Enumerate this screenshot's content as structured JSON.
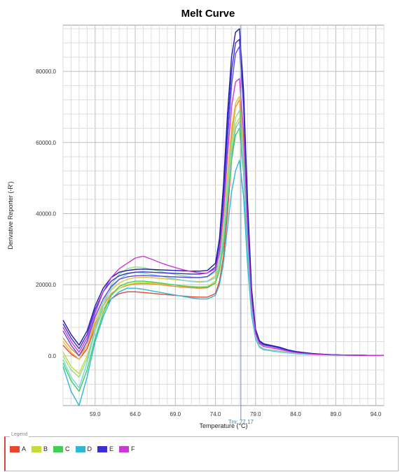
{
  "chart_data": {
    "type": "line",
    "title": "Melt Curve",
    "xlabel": "Temperature (°C)",
    "ylabel": "Derivative Reporter (-R')",
    "xlim": [
      55.0,
      95.0
    ],
    "ylim": [
      -14000,
      93000
    ],
    "x_ticks": [
      59.0,
      64.0,
      69.0,
      74.0,
      79.0,
      84.0,
      89.0,
      94.0
    ],
    "x_tick_labels": [
      "59.0",
      "64.0",
      "69.0",
      "74.0",
      "79.0",
      "84.0",
      "89.0",
      "94.0"
    ],
    "y_ticks": [
      0,
      20000,
      40000,
      60000,
      80000
    ],
    "y_tick_labels": [
      "0.0",
      "20000.0",
      "40000.0",
      "60000.0",
      "80000.0"
    ],
    "grid": true,
    "legend_position": "bottom",
    "tm_marker": {
      "x": 77.17,
      "label": "Tm: 77.17"
    },
    "x": [
      55.0,
      56.0,
      57.0,
      58.0,
      59.0,
      60.0,
      61.0,
      62.0,
      63.0,
      64.0,
      65.0,
      66.0,
      67.0,
      68.0,
      69.0,
      70.0,
      71.0,
      72.0,
      73.0,
      74.0,
      74.5,
      75.0,
      75.5,
      76.0,
      76.5,
      77.0,
      77.5,
      78.0,
      78.5,
      79.0,
      79.5,
      80.0,
      81.0,
      82.0,
      83.0,
      84.0,
      86.0,
      88.0,
      90.0,
      92.0,
      94.0,
      95.0
    ],
    "series": [
      {
        "name": "A",
        "color": "#e8452c",
        "values": [
          3000,
          500,
          -1000,
          2000,
          8000,
          13000,
          16000,
          17500,
          18000,
          18000,
          17800,
          17600,
          17400,
          17200,
          17000,
          16800,
          16600,
          16500,
          16500,
          17500,
          21000,
          28000,
          40000,
          55000,
          64000,
          66000,
          52000,
          30000,
          13000,
          5000,
          2500,
          1800,
          1500,
          1200,
          900,
          600,
          400,
          300,
          200,
          150,
          100,
          100
        ]
      },
      {
        "name": "A",
        "color": "#f08a3c",
        "values": [
          5000,
          2000,
          0,
          3000,
          9000,
          14000,
          17500,
          19000,
          19800,
          20200,
          20300,
          20200,
          20000,
          19800,
          19500,
          19300,
          19100,
          19000,
          19100,
          20500,
          25000,
          34000,
          48000,
          62000,
          70000,
          72000,
          58000,
          33000,
          14000,
          5500,
          2800,
          2000,
          1600,
          1300,
          1000,
          700,
          450,
          300,
          200,
          150,
          100,
          100
        ]
      },
      {
        "name": "B",
        "color": "#c8d93a",
        "values": [
          1000,
          -3000,
          -5000,
          0,
          7000,
          13000,
          17000,
          19000,
          20000,
          20500,
          20600,
          20500,
          20300,
          20100,
          19900,
          19700,
          19500,
          19400,
          19500,
          21000,
          25000,
          33000,
          46000,
          58000,
          65000,
          67000,
          55000,
          31000,
          13500,
          5200,
          2600,
          1900,
          1500,
          1200,
          900,
          600,
          400,
          300,
          200,
          150,
          100,
          100
        ]
      },
      {
        "name": "B",
        "color": "#e3c53a",
        "values": [
          4000,
          1000,
          -1000,
          3000,
          10000,
          15000,
          18500,
          20500,
          21500,
          22000,
          22100,
          22000,
          21800,
          21600,
          21400,
          21200,
          21000,
          20900,
          21000,
          22500,
          27000,
          37000,
          51000,
          64000,
          71000,
          73000,
          60000,
          34000,
          14500,
          5600,
          2800,
          2000,
          1600,
          1300,
          1000,
          700,
          450,
          300,
          200,
          150,
          100,
          100
        ]
      },
      {
        "name": "C",
        "color": "#3fcf52",
        "values": [
          -2000,
          -7000,
          -10000,
          -4000,
          5000,
          12000,
          17000,
          19500,
          20500,
          21000,
          21000,
          20800,
          20500,
          20200,
          19900,
          19600,
          19400,
          19200,
          19300,
          20500,
          24000,
          31000,
          43000,
          55000,
          62000,
          64000,
          52000,
          29000,
          12500,
          5000,
          2500,
          1800,
          1400,
          1100,
          850,
          600,
          400,
          300,
          200,
          150,
          100,
          100
        ]
      },
      {
        "name": "C",
        "color": "#8fe08a",
        "values": [
          0,
          -4000,
          -6000,
          -1000,
          8000,
          15000,
          20000,
          23000,
          24500,
          25000,
          24800,
          24300,
          23800,
          23300,
          22900,
          22500,
          22200,
          22000,
          22200,
          23500,
          27000,
          35000,
          48000,
          60000,
          67000,
          69000,
          56000,
          32000,
          13800,
          5400,
          2700,
          1900,
          1500,
          1200,
          900,
          650,
          420,
          300,
          200,
          150,
          100,
          100
        ]
      },
      {
        "name": "D",
        "color": "#2fb7d8",
        "values": [
          -3000,
          -10000,
          -14000,
          -6000,
          4000,
          11000,
          16000,
          18000,
          19000,
          19000,
          18700,
          18300,
          17900,
          17500,
          17100,
          16700,
          16300,
          16000,
          16000,
          17000,
          20000,
          26000,
          36000,
          46000,
          52000,
          55000,
          45000,
          26000,
          11500,
          4700,
          2400,
          1700,
          1400,
          1100,
          850,
          600,
          400,
          300,
          200,
          150,
          100,
          100
        ]
      },
      {
        "name": "D",
        "color": "#7ecfe2",
        "values": [
          -1000,
          -6000,
          -9000,
          -2000,
          7000,
          14000,
          19000,
          21500,
          23000,
          23500,
          23300,
          22900,
          22500,
          22000,
          21600,
          21200,
          20900,
          20700,
          20900,
          22000,
          25500,
          33000,
          45000,
          57000,
          64000,
          66000,
          54000,
          31000,
          13200,
          5200,
          2600,
          1900,
          1500,
          1200,
          900,
          650,
          420,
          300,
          200,
          150,
          100,
          100
        ]
      },
      {
        "name": "E",
        "color": "#3a2fd0",
        "values": [
          9000,
          5000,
          2000,
          6000,
          13000,
          18000,
          21000,
          22500,
          23200,
          23500,
          23600,
          23500,
          23400,
          23300,
          23200,
          23100,
          23000,
          23000,
          23300,
          25000,
          31000,
          45000,
          64000,
          80000,
          88000,
          89000,
          72000,
          42000,
          18000,
          7000,
          4000,
          3200,
          2700,
          2200,
          1600,
          1100,
          600,
          350,
          200,
          150,
          100,
          100
        ]
      },
      {
        "name": "E",
        "color": "#5a4ae6",
        "values": [
          7000,
          3000,
          0,
          4000,
          11000,
          16000,
          19500,
          21500,
          22200,
          22500,
          22600,
          22500,
          22400,
          22300,
          22200,
          22100,
          22000,
          22000,
          22300,
          24000,
          29000,
          42000,
          60000,
          76000,
          85000,
          87000,
          70000,
          40000,
          17000,
          6800,
          3800,
          3000,
          2600,
          2100,
          1500,
          1000,
          550,
          330,
          200,
          150,
          100,
          100
        ]
      },
      {
        "name": "E",
        "color": "#1f1aa8",
        "values": [
          10000,
          6000,
          3000,
          7000,
          14000,
          19000,
          22000,
          23500,
          24000,
          24300,
          24400,
          24300,
          24200,
          24100,
          24000,
          23900,
          23800,
          23800,
          24000,
          26000,
          33000,
          48000,
          68000,
          84000,
          91000,
          92000,
          75000,
          44000,
          19000,
          7500,
          4200,
          3400,
          2900,
          2400,
          1700,
          1200,
          650,
          380,
          220,
          160,
          110,
          100
        ]
      },
      {
        "name": "F",
        "color": "#c93ad0",
        "values": [
          8000,
          4000,
          1000,
          5000,
          12000,
          18000,
          22000,
          24500,
          26000,
          27500,
          28000,
          27200,
          26300,
          25500,
          24800,
          24200,
          23700,
          23300,
          23300,
          24500,
          29000,
          40000,
          56000,
          70000,
          77000,
          78000,
          63000,
          36000,
          15500,
          6200,
          3400,
          2600,
          2200,
          1800,
          1300,
          900,
          500,
          320,
          200,
          150,
          100,
          100
        ]
      }
    ]
  },
  "legend": {
    "caption": "Legend",
    "items": [
      {
        "label": "A",
        "color": "#e8452c"
      },
      {
        "label": "B",
        "color": "#c8d93a"
      },
      {
        "label": "C",
        "color": "#3fcf52"
      },
      {
        "label": "D",
        "color": "#2fb7d8"
      },
      {
        "label": "E",
        "color": "#3a2fd0"
      },
      {
        "label": "F",
        "color": "#c93ad0"
      }
    ]
  }
}
